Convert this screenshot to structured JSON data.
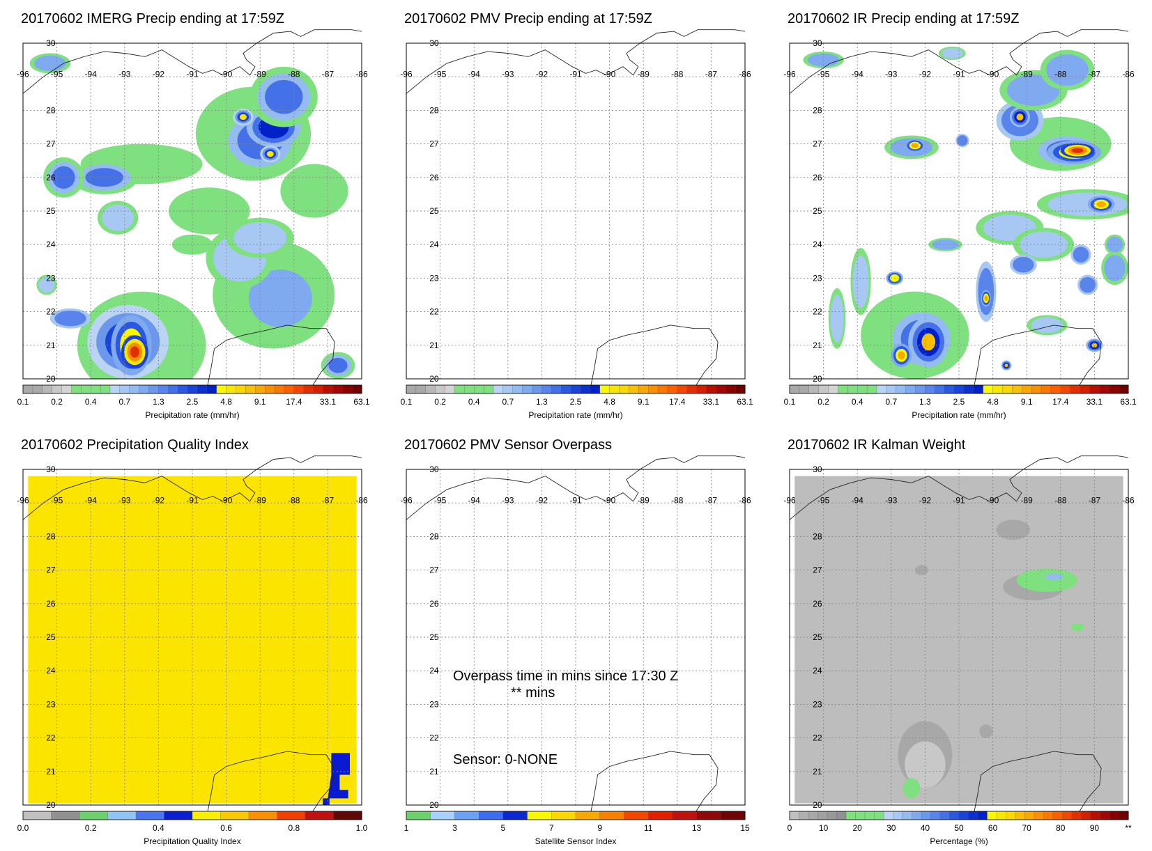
{
  "panels": [
    {
      "id": "imerg",
      "title": "20170602 IMERG Precip ending at 17:59Z",
      "colorbar": {
        "label": "Precipitation rate (mm/hr)",
        "ticks": [
          "0.1",
          "0.2",
          "0.4",
          "0.7",
          "1.3",
          "2.5",
          "4.8",
          "9.1",
          "17.4",
          "33.1",
          "63.1"
        ],
        "colors": [
          "#a8a8a8",
          "#a8a8a8",
          "#b8b8b8",
          "#c8c8c8",
          "#d4d4d4",
          "#7fe07f",
          "#7fe07f",
          "#7fe07f",
          "#7fe07f",
          "#bcd4f4",
          "#a8c8f4",
          "#94bcf0",
          "#80aaf0",
          "#6c98ec",
          "#5884ec",
          "#4470e8",
          "#2a58e0",
          "#1a44d8",
          "#0c30d0",
          "#0020c8",
          "#f8f800",
          "#f8e800",
          "#f8d800",
          "#f8c000",
          "#f8a800",
          "#f89000",
          "#f87800",
          "#f86000",
          "#f04800",
          "#e03000",
          "#d02000",
          "#b81000",
          "#a00808",
          "#880000",
          "#700000"
        ]
      }
    },
    {
      "id": "pmv",
      "title": "20170602 PMV Precip ending at 17:59Z",
      "colorbar": {
        "label": "Precipitation rate (mm/hr)",
        "ticks": [
          "0.1",
          "0.2",
          "0.4",
          "0.7",
          "1.3",
          "2.5",
          "4.8",
          "9.1",
          "17.4",
          "33.1",
          "63.1"
        ]
      }
    },
    {
      "id": "ir",
      "title": "20170602 IR Precip ending at 17:59Z",
      "colorbar": {
        "label": "Precipitation rate (mm/hr)",
        "ticks": [
          "0.1",
          "0.2",
          "0.4",
          "0.7",
          "1.3",
          "2.5",
          "4.8",
          "9.1",
          "17.4",
          "33.1",
          "63.1"
        ]
      }
    },
    {
      "id": "pqi",
      "title": "20170602 Precipitation Quality Index",
      "colorbar": {
        "label": "Precipitation Quality Index",
        "ticks": [
          "0.0",
          "0.2",
          "0.4",
          "0.6",
          "0.8",
          "1.0"
        ],
        "colors": [
          "#c0c0c0",
          "#909090",
          "#6cd06c",
          "#90c4f4",
          "#4a74f0",
          "#0a20d0",
          "#f8f000",
          "#f8c800",
          "#f89000",
          "#f04000",
          "#c01010",
          "#600808"
        ]
      }
    },
    {
      "id": "sensor",
      "title": "20170602 PMV Sensor Overpass",
      "overpass_text": "Overpass time in mins since 17:30 Z",
      "mins_text": "** mins",
      "sensor_text": "Sensor:   0-NONE",
      "colorbar": {
        "label": "Satellite Sensor Index",
        "ticks": [
          "1",
          "3",
          "5",
          "7",
          "9",
          "11",
          "13",
          "15"
        ],
        "colors": [
          "#6cd06c",
          "#a8d0f8",
          "#6ca0f4",
          "#3c6cf0",
          "#0c28d0",
          "#f8f800",
          "#f8d800",
          "#f8a800",
          "#f88000",
          "#f04800",
          "#e02000",
          "#c01010",
          "#900808",
          "#700404"
        ]
      }
    },
    {
      "id": "kalman",
      "title": "20170602 IR Kalman Weight",
      "colorbar": {
        "label": "Percentage (%)",
        "ticks": [
          "0",
          "10",
          "20",
          "30",
          "40",
          "50",
          "60",
          "70",
          "80",
          "90",
          "**"
        ],
        "colors": [
          "#c0c0c0",
          "#b0b0b0",
          "#a8a8a8",
          "#a0a0a0",
          "#989898",
          "#909090",
          "#7fe07f",
          "#7fe07f",
          "#7fe07f",
          "#7fe07f",
          "#bcd4f4",
          "#a8c8f4",
          "#94bcf0",
          "#80aaf0",
          "#6c98ec",
          "#5884ec",
          "#4470e8",
          "#2a58e0",
          "#1a44d8",
          "#0c30d0",
          "#0020c8",
          "#f8f800",
          "#f8e800",
          "#f8d800",
          "#f8c000",
          "#f8a800",
          "#f89000",
          "#f87800",
          "#f86000",
          "#f04800",
          "#e03000",
          "#d02000",
          "#b81000",
          "#a00808",
          "#880000",
          "#700000"
        ]
      }
    }
  ],
  "map": {
    "lon_labels": [
      "-96",
      "-95",
      "-94",
      "-93",
      "-92",
      "-91",
      "-90",
      "-89",
      "-88",
      "-87",
      "-86"
    ],
    "lat_labels": [
      "30",
      "28",
      "27",
      "26",
      "25",
      "24",
      "23",
      "22",
      "21",
      "20"
    ]
  }
}
